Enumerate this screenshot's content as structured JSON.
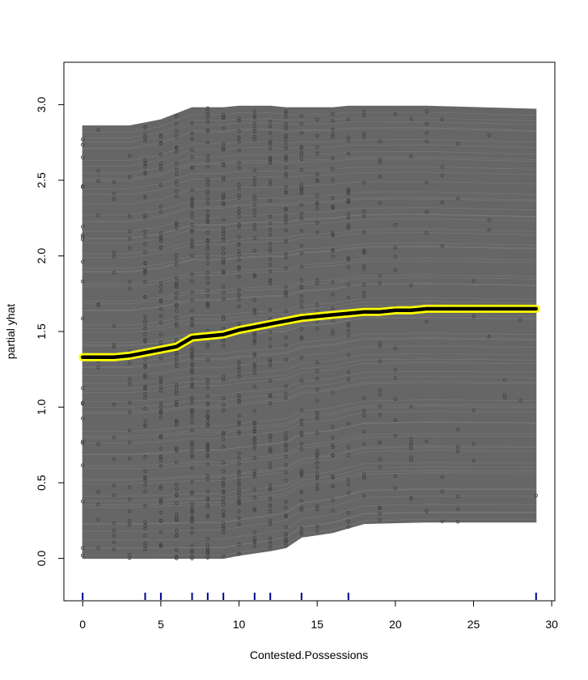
{
  "chart_data": {
    "type": "line",
    "xlabel": "Contested.Possessions",
    "ylabel": "partial yhat",
    "xlim": [
      -1.2,
      30.2
    ],
    "ylim": [
      -0.28,
      3.28
    ],
    "x_ticks": [
      {
        "value": 0,
        "label": "0"
      },
      {
        "value": 5,
        "label": "5"
      },
      {
        "value": 10,
        "label": "10"
      },
      {
        "value": 15,
        "label": "15"
      },
      {
        "value": 20,
        "label": "20"
      },
      {
        "value": 25,
        "label": "25"
      },
      {
        "value": 30,
        "label": "30"
      }
    ],
    "y_ticks": [
      {
        "value": 0.0,
        "label": "0.0"
      },
      {
        "value": 0.5,
        "label": "0.5"
      },
      {
        "value": 1.0,
        "label": "1.0"
      },
      {
        "value": 1.5,
        "label": "1.5"
      },
      {
        "value": 2.0,
        "label": "2.0"
      },
      {
        "value": 2.5,
        "label": "2.5"
      },
      {
        "value": 3.0,
        "label": "3.0"
      }
    ],
    "ice_band": {
      "x": [
        0,
        3,
        5,
        7,
        9,
        10,
        12,
        13,
        14,
        16,
        17,
        18,
        22,
        29
      ],
      "lower": [
        0.0,
        0.0,
        0.0,
        0.0,
        0.0,
        0.02,
        0.05,
        0.07,
        0.14,
        0.17,
        0.2,
        0.23,
        0.24,
        0.24
      ],
      "upper": [
        2.86,
        2.86,
        2.9,
        2.98,
        2.98,
        2.99,
        2.99,
        2.98,
        2.98,
        2.98,
        2.99,
        2.99,
        2.99,
        2.97
      ]
    },
    "pdp_line": {
      "x": [
        0,
        1,
        2,
        3,
        4,
        5,
        6,
        7,
        8,
        9,
        10,
        11,
        12,
        13,
        14,
        15,
        16,
        17,
        18,
        19,
        20,
        21,
        22,
        23,
        24,
        25,
        26,
        27,
        28,
        29
      ],
      "y": [
        1.33,
        1.33,
        1.33,
        1.34,
        1.36,
        1.38,
        1.4,
        1.46,
        1.47,
        1.48,
        1.51,
        1.53,
        1.55,
        1.57,
        1.59,
        1.6,
        1.61,
        1.62,
        1.63,
        1.63,
        1.64,
        1.64,
        1.65,
        1.65,
        1.65,
        1.65,
        1.65,
        1.65,
        1.65,
        1.65
      ],
      "color": "#000000",
      "halo_color": "#ffff00"
    },
    "rug_x": [
      0,
      4,
      5,
      7,
      8,
      9,
      11,
      12,
      14,
      17,
      29
    ],
    "colors": {
      "band": "#666666",
      "band_line": "#8a8a8a",
      "points": "#444444",
      "rug": "#00008b"
    },
    "grid": false,
    "legend": "none"
  }
}
